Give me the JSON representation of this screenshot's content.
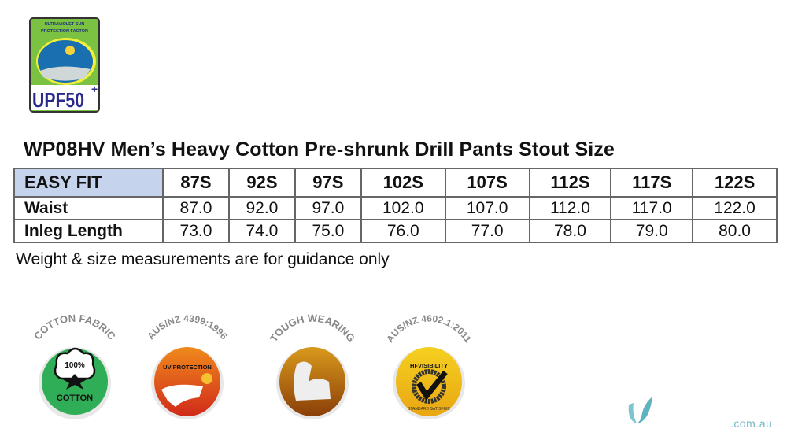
{
  "upf_badge": {
    "top_text": "ULTRAVIOLET SUN PROTECTION FACTOR",
    "rating": "UPF50",
    "plus": "+"
  },
  "title": "WP08HV Men’s Heavy Cotton Pre-shrunk Drill Pants Stout Size",
  "table": {
    "header_label": "EASY FIT",
    "sizes": [
      "87S",
      "92S",
      "97S",
      "102S",
      "107S",
      "112S",
      "117S",
      "122S"
    ],
    "rows": [
      {
        "label": "Waist",
        "values": [
          "87.0",
          "92.0",
          "97.0",
          "102.0",
          "107.0",
          "112.0",
          "117.0",
          "122.0"
        ]
      },
      {
        "label": "Inleg Length",
        "values": [
          "73.0",
          "74.0",
          "75.0",
          "76.0",
          "77.0",
          "78.0",
          "79.0",
          "80.0"
        ]
      }
    ],
    "header_color": "#c6d3ec"
  },
  "note": "Weight & size measurements are for guidance only",
  "badges": [
    {
      "arc": "COTTON FABRIC",
      "inner_top": "100%",
      "inner_bottom": "COTTON",
      "color": "#2fae57",
      "icon": "cotton-flower-icon"
    },
    {
      "arc": "AUS/NZ 4399:1996",
      "inner_top": "UV PROTECTION",
      "inner_bottom": "",
      "color": "#e0501a",
      "icon": "sun-map-icon"
    },
    {
      "arc": "TOUGH WEARING",
      "inner_top": "",
      "inner_bottom": "",
      "color": "#b56a0e",
      "icon": "flexed-arm-icon"
    },
    {
      "arc": "AUS/NZ 4602.1:2011",
      "inner_top": "HI-VISIBILITY",
      "inner_bottom": "STANDARD SATISFIED",
      "color": "#f2c21c",
      "icon": "checkmark-icon"
    }
  ],
  "watermark": {
    "domain": ".com.au",
    "color": "#6fb8c4"
  }
}
